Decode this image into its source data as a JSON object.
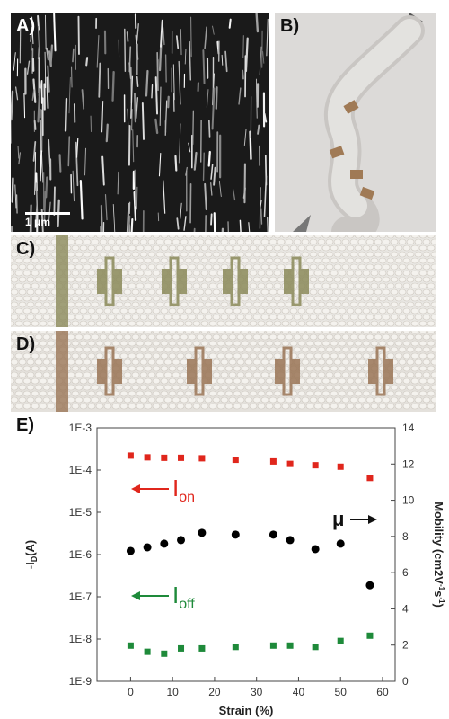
{
  "panels": {
    "a": {
      "label": "A)",
      "scalebar": "1 μm"
    },
    "b": {
      "label": "B)"
    },
    "c": {
      "label": "C)"
    },
    "d": {
      "label": "D)"
    },
    "e": {
      "label": "E)"
    }
  },
  "chart_data": {
    "type": "scatter",
    "xlabel": "Strain (%)",
    "xlim": [
      -8,
      63
    ],
    "xticks": [
      "0",
      "10",
      "20",
      "30",
      "40",
      "50",
      "60"
    ],
    "y_left": {
      "label": "-ID(A)",
      "scale": "log",
      "ticks": [
        "1E-3",
        "1E-4",
        "1E-5",
        "1E-6",
        "1E-7",
        "1E-8",
        "1E-9"
      ]
    },
    "y_right": {
      "label": "Mobility (cm2V-1s-1)",
      "lim": [
        0,
        14
      ],
      "ticks": [
        "0",
        "2",
        "4",
        "6",
        "8",
        "10",
        "12",
        "14"
      ]
    },
    "series": [
      {
        "name": "Ion",
        "axis": "left",
        "color": "#e0261c",
        "marker": "square",
        "x": [
          0,
          4,
          8,
          12,
          17,
          25,
          34,
          38,
          44,
          50,
          57
        ],
        "y": [
          0.00022,
          0.0002,
          0.000195,
          0.000195,
          0.00019,
          0.000175,
          0.00016,
          0.00014,
          0.00013,
          0.00012,
          6.5e-05
        ]
      },
      {
        "name": "μ",
        "axis": "right",
        "color": "#000000",
        "marker": "circle",
        "x": [
          0,
          4,
          8,
          12,
          17,
          25,
          34,
          38,
          44,
          50,
          57
        ],
        "y": [
          7.2,
          7.4,
          7.6,
          7.8,
          8.2,
          8.1,
          8.1,
          7.8,
          7.3,
          7.6,
          5.3
        ]
      },
      {
        "name": "Ioff",
        "axis": "left",
        "color": "#1e8a3a",
        "marker": "square",
        "x": [
          0,
          4,
          8,
          12,
          17,
          25,
          34,
          38,
          44,
          50,
          57
        ],
        "y": [
          7e-09,
          5e-09,
          4.5e-09,
          6e-09,
          6e-09,
          6.5e-09,
          7e-09,
          7e-09,
          6.5e-09,
          9e-09,
          1.2e-08
        ]
      }
    ],
    "annotations": [
      {
        "text": "I",
        "sub": "on",
        "color": "#e0261c"
      },
      {
        "text": "I",
        "sub": "off",
        "color": "#1e8a3a"
      },
      {
        "text": "μ",
        "sub": "",
        "color": "#000000"
      }
    ]
  }
}
